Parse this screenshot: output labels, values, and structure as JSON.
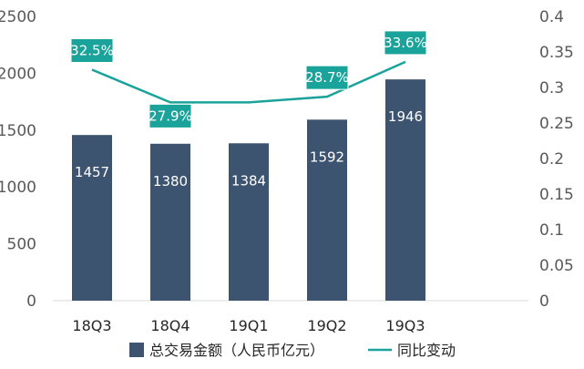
{
  "chart_data": {
    "type": "bar",
    "categories": [
      "18Q3",
      "18Q4",
      "19Q1",
      "19Q2",
      "19Q3"
    ],
    "series": [
      {
        "name": "总交易金额（人民币亿元）",
        "type": "bar",
        "axis": "left",
        "values": [
          1457,
          1380,
          1384,
          1592,
          1946
        ],
        "labels": [
          "1457",
          "1380",
          "1384",
          "1592",
          "1946"
        ]
      },
      {
        "name": "同比变动",
        "type": "line",
        "axis": "right",
        "values": [
          0.325,
          0.279,
          0.279,
          0.287,
          0.336
        ],
        "labels": [
          "32.5%",
          "27.9%",
          "",
          "28.7%",
          "33.6%"
        ]
      }
    ],
    "ylim": [
      0,
      2500
    ],
    "yticks": [
      "0",
      "500",
      "1000",
      "1500",
      "2000",
      "2500"
    ],
    "y2lim": [
      0,
      0.4
    ],
    "y2ticks": [
      "0",
      "0.05",
      "0.1",
      "0.15",
      "0.2",
      "0.25",
      "0.3",
      "0.35",
      "0.4"
    ],
    "legend_position": "bottom",
    "grid": false,
    "colors": {
      "bar": "#3d5470",
      "line": "#1aa39a",
      "line_label_bg": "#1aa39a",
      "text": "#595959"
    }
  }
}
